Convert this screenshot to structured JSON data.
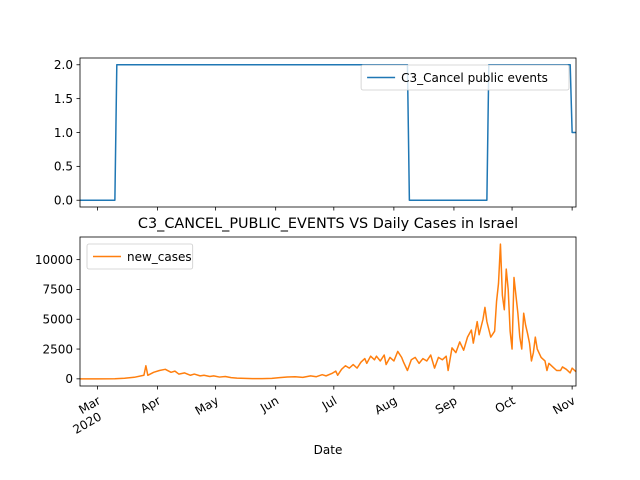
{
  "chart_data": [
    {
      "type": "line",
      "title": "",
      "xlabel": "",
      "ylabel": "",
      "ylim": [
        -0.1,
        2.1
      ],
      "y_ticks": [
        0.0,
        0.5,
        1.0,
        1.5,
        2.0
      ],
      "y_tick_labels": [
        "0.0",
        "0.5",
        "1.0",
        "1.5",
        "2.0"
      ],
      "x_range": [
        "2020-02-21",
        "2020-11-03"
      ],
      "x_tick_labels_shown": false,
      "legend_position": "upper right",
      "series": [
        {
          "name": "C3_Cancel public events",
          "color": "#1f77b4",
          "points": [
            [
              "2020-02-21",
              0
            ],
            [
              "2020-03-10",
              0
            ],
            [
              "2020-03-11",
              2
            ],
            [
              "2020-08-08",
              2
            ],
            [
              "2020-08-09",
              0
            ],
            [
              "2020-09-18",
              0
            ],
            [
              "2020-09-19",
              2
            ],
            [
              "2020-10-31",
              2
            ],
            [
              "2020-11-01",
              1
            ],
            [
              "2020-11-03",
              1
            ]
          ]
        }
      ]
    },
    {
      "type": "line",
      "title": "C3_CANCEL_PUBLIC_EVENTS VS Daily Cases in Israel",
      "xlabel": "Date",
      "ylabel": "",
      "ylim": [
        -600,
        11900
      ],
      "y_ticks": [
        0,
        2500,
        5000,
        7500,
        10000
      ],
      "y_tick_labels": [
        "0",
        "2500",
        "5000",
        "7500",
        "10000"
      ],
      "x_range": [
        "2020-02-21",
        "2020-11-03"
      ],
      "x_ticks": [
        {
          "date": "2020-03-01",
          "label": "Mar",
          "sublabel": "2020"
        },
        {
          "date": "2020-04-01",
          "label": "Apr"
        },
        {
          "date": "2020-05-01",
          "label": "May"
        },
        {
          "date": "2020-06-01",
          "label": "Jun"
        },
        {
          "date": "2020-07-01",
          "label": "Jul"
        },
        {
          "date": "2020-08-01",
          "label": "Aug"
        },
        {
          "date": "2020-09-01",
          "label": "Sep"
        },
        {
          "date": "2020-10-01",
          "label": "Oct"
        },
        {
          "date": "2020-11-01",
          "label": "Nov"
        }
      ],
      "legend_position": "upper left",
      "series": [
        {
          "name": "new_cases",
          "color": "#ff7f0e",
          "points": [
            [
              "2020-02-21",
              0
            ],
            [
              "2020-03-01",
              2
            ],
            [
              "2020-03-10",
              10
            ],
            [
              "2020-03-15",
              50
            ],
            [
              "2020-03-20",
              130
            ],
            [
              "2020-03-25",
              300
            ],
            [
              "2020-03-26",
              1100
            ],
            [
              "2020-03-27",
              300
            ],
            [
              "2020-03-30",
              550
            ],
            [
              "2020-04-02",
              700
            ],
            [
              "2020-04-05",
              800
            ],
            [
              "2020-04-08",
              550
            ],
            [
              "2020-04-10",
              650
            ],
            [
              "2020-04-12",
              400
            ],
            [
              "2020-04-15",
              500
            ],
            [
              "2020-04-18",
              300
            ],
            [
              "2020-04-20",
              400
            ],
            [
              "2020-04-23",
              250
            ],
            [
              "2020-04-25",
              300
            ],
            [
              "2020-04-28",
              200
            ],
            [
              "2020-04-30",
              250
            ],
            [
              "2020-05-03",
              150
            ],
            [
              "2020-05-06",
              200
            ],
            [
              "2020-05-09",
              100
            ],
            [
              "2020-05-12",
              60
            ],
            [
              "2020-05-16",
              40
            ],
            [
              "2020-05-20",
              20
            ],
            [
              "2020-05-25",
              15
            ],
            [
              "2020-05-30",
              40
            ],
            [
              "2020-06-03",
              100
            ],
            [
              "2020-06-07",
              150
            ],
            [
              "2020-06-11",
              180
            ],
            [
              "2020-06-15",
              120
            ],
            [
              "2020-06-19",
              250
            ],
            [
              "2020-06-22",
              180
            ],
            [
              "2020-06-25",
              350
            ],
            [
              "2020-06-27",
              250
            ],
            [
              "2020-06-30",
              450
            ],
            [
              "2020-07-02",
              650
            ],
            [
              "2020-07-03",
              300
            ],
            [
              "2020-07-05",
              800
            ],
            [
              "2020-07-07",
              1100
            ],
            [
              "2020-07-09",
              900
            ],
            [
              "2020-07-11",
              1200
            ],
            [
              "2020-07-13",
              900
            ],
            [
              "2020-07-15",
              1400
            ],
            [
              "2020-07-17",
              1700
            ],
            [
              "2020-07-18",
              1300
            ],
            [
              "2020-07-20",
              1900
            ],
            [
              "2020-07-22",
              1600
            ],
            [
              "2020-07-23",
              1900
            ],
            [
              "2020-07-25",
              1500
            ],
            [
              "2020-07-27",
              2000
            ],
            [
              "2020-07-28",
              1200
            ],
            [
              "2020-07-30",
              1800
            ],
            [
              "2020-08-01",
              1500
            ],
            [
              "2020-08-03",
              2300
            ],
            [
              "2020-08-05",
              1800
            ],
            [
              "2020-08-06",
              1400
            ],
            [
              "2020-08-08",
              700
            ],
            [
              "2020-08-10",
              1600
            ],
            [
              "2020-08-12",
              1800
            ],
            [
              "2020-08-14",
              1300
            ],
            [
              "2020-08-16",
              1700
            ],
            [
              "2020-08-18",
              1500
            ],
            [
              "2020-08-20",
              2000
            ],
            [
              "2020-08-22",
              900
            ],
            [
              "2020-08-24",
              1800
            ],
            [
              "2020-08-26",
              1600
            ],
            [
              "2020-08-28",
              1900
            ],
            [
              "2020-08-29",
              700
            ],
            [
              "2020-08-31",
              2600
            ],
            [
              "2020-09-02",
              2200
            ],
            [
              "2020-09-04",
              3100
            ],
            [
              "2020-09-06",
              2400
            ],
            [
              "2020-09-08",
              3500
            ],
            [
              "2020-09-10",
              4100
            ],
            [
              "2020-09-11",
              3000
            ],
            [
              "2020-09-13",
              4800
            ],
            [
              "2020-09-14",
              3700
            ],
            [
              "2020-09-16",
              5000
            ],
            [
              "2020-09-17",
              6000
            ],
            [
              "2020-09-18",
              4800
            ],
            [
              "2020-09-20",
              3500
            ],
            [
              "2020-09-22",
              4000
            ],
            [
              "2020-09-23",
              6500
            ],
            [
              "2020-09-24",
              8000
            ],
            [
              "2020-09-25",
              11300
            ],
            [
              "2020-09-26",
              7000
            ],
            [
              "2020-09-27",
              5800
            ],
            [
              "2020-09-28",
              9200
            ],
            [
              "2020-09-29",
              7500
            ],
            [
              "2020-09-30",
              4000
            ],
            [
              "2020-10-01",
              2500
            ],
            [
              "2020-10-02",
              8500
            ],
            [
              "2020-10-03",
              7000
            ],
            [
              "2020-10-04",
              5500
            ],
            [
              "2020-10-05",
              3500
            ],
            [
              "2020-10-06",
              2500
            ],
            [
              "2020-10-07",
              5500
            ],
            [
              "2020-10-08",
              4500
            ],
            [
              "2020-10-09",
              3800
            ],
            [
              "2020-10-10",
              3000
            ],
            [
              "2020-10-11",
              1500
            ],
            [
              "2020-10-12",
              2200
            ],
            [
              "2020-10-13",
              3500
            ],
            [
              "2020-10-14",
              2500
            ],
            [
              "2020-10-16",
              1800
            ],
            [
              "2020-10-18",
              1500
            ],
            [
              "2020-10-19",
              700
            ],
            [
              "2020-10-20",
              1300
            ],
            [
              "2020-10-22",
              1000
            ],
            [
              "2020-10-24",
              700
            ],
            [
              "2020-10-26",
              700
            ],
            [
              "2020-10-27",
              1000
            ],
            [
              "2020-10-29",
              800
            ],
            [
              "2020-10-31",
              500
            ],
            [
              "2020-11-01",
              900
            ],
            [
              "2020-11-03",
              600
            ]
          ]
        }
      ]
    }
  ]
}
